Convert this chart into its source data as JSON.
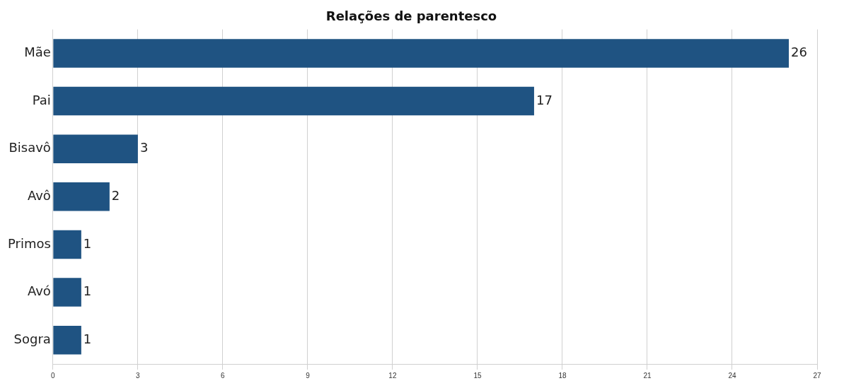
{
  "chart_data": {
    "type": "bar",
    "orientation": "horizontal",
    "title": "Relações de parentesco",
    "categories": [
      "Mãe",
      "Pai",
      "Bisavô",
      "Avô",
      "Primos",
      "Avó",
      "Sogra"
    ],
    "values": [
      26,
      17,
      3,
      2,
      1,
      1,
      1
    ],
    "color": "#1f5382",
    "xlim": [
      0,
      27
    ],
    "xticks": [
      0,
      3,
      6,
      9,
      12,
      15,
      18,
      21,
      24,
      27
    ],
    "grid": "x",
    "data_labels": true
  }
}
